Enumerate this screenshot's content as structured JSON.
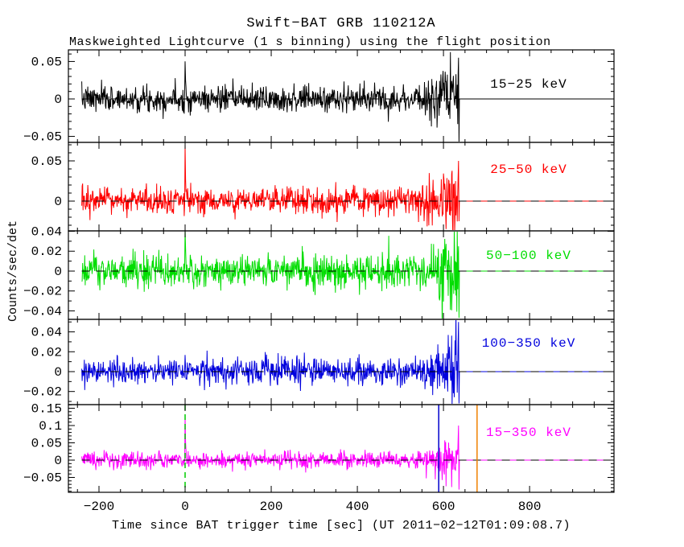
{
  "title": "Swift−BAT GRB 110212A",
  "subtitle": "Maskweighted Lightcurve (1 s binning) using the flight position",
  "chart_data": {
    "type": "line",
    "title": "Swift−BAT GRB 110212A",
    "subtitle": "Maskweighted Lightcurve (1 s binning) using the flight position",
    "xlabel": "Time since BAT trigger time [sec] (UT 2011−02−12T01:09:08.7)",
    "ylabel": "Counts/sec/det",
    "xlim": [
      -271,
      996
    ],
    "x_major_ticks": [
      -200,
      0,
      200,
      400,
      600,
      800
    ],
    "x_tick_labels": [
      "−200",
      "0",
      "200",
      "400",
      "600",
      "800"
    ],
    "x_minor_step": 50,
    "binning_sec": 1,
    "data_start_sec": -240,
    "data_end_sec": 637,
    "zero_line": {
      "style": "dashed",
      "color": "#000000"
    },
    "panels": [
      {
        "label": "15−25 keV",
        "color": "#000000",
        "ylim": [
          -0.058,
          0.0655
        ],
        "y_major_ticks": [
          0.05,
          0,
          -0.05
        ],
        "y_tick_labels": [
          "0.05",
          "0",
          "−0.05"
        ],
        "y_minor_step": 0.01,
        "noise_sigma": 0.0085,
        "trigger_spike_peak": 0.052,
        "end_burst": {
          "max": 0.055,
          "min": -0.06
        },
        "label_offset": 42
      },
      {
        "label": "25−50 keV",
        "color": "#ff0000",
        "ylim": [
          -0.037,
          0.073
        ],
        "y_major_ticks": [
          0.05,
          0
        ],
        "y_tick_labels": [
          "0.05",
          "0"
        ],
        "y_minor_step": 0.01,
        "noise_sigma": 0.0085,
        "trigger_spike_peak": 0.068,
        "end_burst": {
          "max": 0.05,
          "min": -0.025
        },
        "label_offset": 33
      },
      {
        "label": "50−100 keV",
        "color": "#00dd00",
        "ylim": [
          -0.0485,
          0.0404
        ],
        "y_major_ticks": [
          0.04,
          0.02,
          0,
          -0.02,
          -0.04
        ],
        "y_tick_labels": [
          "0.04",
          "0.02",
          "0",
          "−0.02",
          "−0.04"
        ],
        "y_minor_step": 0.01,
        "noise_sigma": 0.0085,
        "trigger_spike_peak": 0.034,
        "end_burst": {
          "max": 0.025,
          "min": -0.047
        },
        "label_offset": 30
      },
      {
        "label": "100−350 keV",
        "color": "#0000dd",
        "ylim": [
          -0.0332,
          0.0526
        ],
        "y_major_ticks": [
          0.04,
          0.02,
          0,
          -0.02
        ],
        "y_tick_labels": [
          "0.04",
          "0.02",
          "0",
          "−0.02"
        ],
        "y_minor_step": 0.01,
        "noise_sigma": 0.0065,
        "trigger_spike_peak": 0,
        "end_burst": {
          "max": 0.05,
          "min": -0.032
        },
        "label_offset": 29
      },
      {
        "label": "15−350 keV",
        "color": "#ff00ff",
        "ylim": [
          -0.093,
          0.1605
        ],
        "y_major_ticks": [
          0.15,
          0.1,
          0.05,
          0,
          -0.05
        ],
        "y_tick_labels": [
          "0.15",
          "0.1",
          "0.05",
          "0",
          "−0.05"
        ],
        "y_minor_step": 0.01,
        "noise_sigma": 0.012,
        "trigger_spike_peak": 0.14,
        "end_burst": {
          "max": 0.1,
          "min": -0.085
        },
        "label_offset": 34,
        "vlines": [
          {
            "t": 0,
            "color": "#00cc00",
            "style": "dashed",
            "name": "trigger-time-marker"
          },
          {
            "t": 589,
            "color": "#0000cc",
            "style": "solid",
            "name": "slew-start-marker"
          },
          {
            "t": 678,
            "color": "#f08000",
            "style": "solid",
            "name": "slew-end-marker"
          }
        ]
      }
    ]
  }
}
